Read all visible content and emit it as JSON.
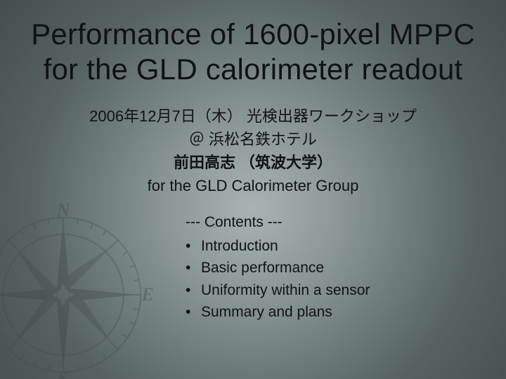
{
  "title": "Performance of 1600-pixel MPPC for the GLD calorimeter readout",
  "sub": {
    "line1": "2006年12月7日（木） 光検出器ワークショップ",
    "line2": "＠ 浜松名鉄ホテル",
    "line3_bold": "前田高志 （筑波大学）",
    "line4": "for the GLD Calorimeter Group"
  },
  "contents": {
    "header": "--- Contents ---",
    "items": [
      "Introduction",
      "Basic performance",
      "Uniformity within a sensor",
      "Summary and plans"
    ]
  },
  "style": {
    "compass": {
      "ring_stroke": "#404a4a",
      "ring_fill_opacity": 0.0,
      "tick_stroke": "#404a4a",
      "needle_fill": "#39403f",
      "letter_fill": "#39403f"
    }
  }
}
